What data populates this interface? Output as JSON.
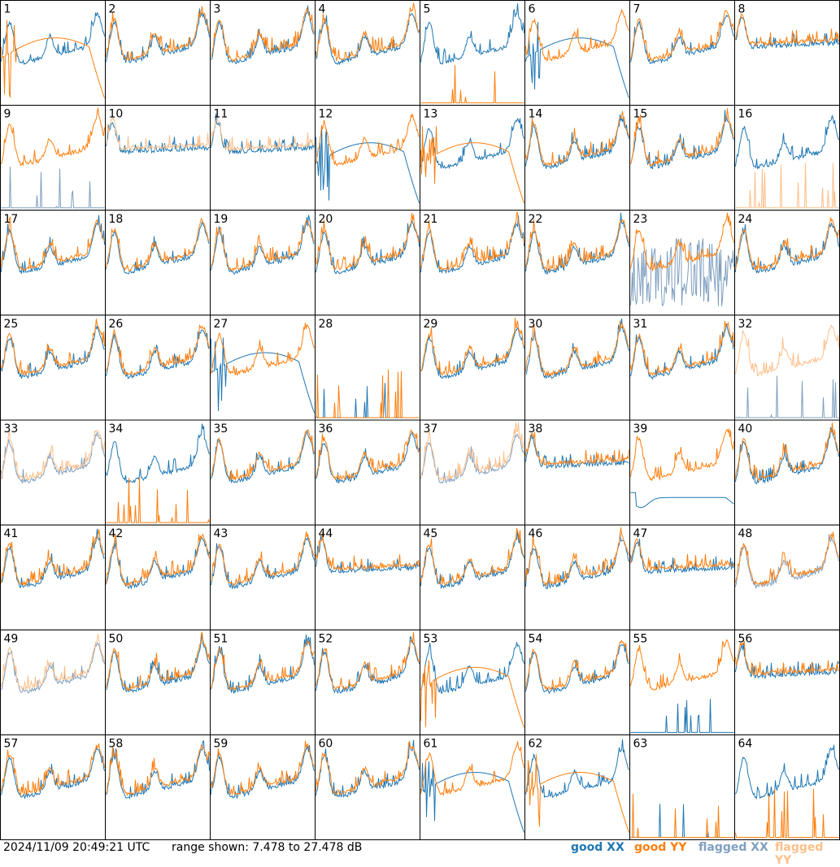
{
  "chart_data": {
    "type": "line",
    "panels": [
      {
        "id": "1",
        "xx": "good",
        "yy": "good",
        "shape": "yy-rolloff"
      },
      {
        "id": "2",
        "xx": "good",
        "yy": "good",
        "shape": "normal"
      },
      {
        "id": "3",
        "xx": "good",
        "yy": "good",
        "shape": "normal"
      },
      {
        "id": "4",
        "xx": "good",
        "yy": "good",
        "shape": "normal"
      },
      {
        "id": "5",
        "xx": "good",
        "yy": "good",
        "shape": "yy-dead"
      },
      {
        "id": "6",
        "xx": "good",
        "yy": "good",
        "shape": "xx-rolloff"
      },
      {
        "id": "7",
        "xx": "good",
        "yy": "good",
        "shape": "normal"
      },
      {
        "id": "8",
        "xx": "good",
        "yy": "good",
        "shape": "flatish"
      },
      {
        "id": "9",
        "xx": "flagged",
        "yy": "good",
        "shape": "xx-spiky-dead"
      },
      {
        "id": "10",
        "xx": "good",
        "yy": "flagged",
        "shape": "flatish"
      },
      {
        "id": "11",
        "xx": "good",
        "yy": "flagged",
        "shape": "flatish"
      },
      {
        "id": "12",
        "xx": "good",
        "yy": "good",
        "shape": "xx-rolloff"
      },
      {
        "id": "13",
        "xx": "good",
        "yy": "good",
        "shape": "yy-rolloff"
      },
      {
        "id": "14",
        "xx": "good",
        "yy": "good",
        "shape": "normal"
      },
      {
        "id": "15",
        "xx": "good",
        "yy": "good",
        "shape": "normal"
      },
      {
        "id": "16",
        "xx": "good",
        "yy": "flagged",
        "shape": "yy-dead"
      },
      {
        "id": "17",
        "xx": "good",
        "yy": "good",
        "shape": "normal"
      },
      {
        "id": "18",
        "xx": "good",
        "yy": "good",
        "shape": "normal"
      },
      {
        "id": "19",
        "xx": "good",
        "yy": "good",
        "shape": "normal"
      },
      {
        "id": "20",
        "xx": "good",
        "yy": "good",
        "shape": "normal"
      },
      {
        "id": "21",
        "xx": "good",
        "yy": "good",
        "shape": "normal"
      },
      {
        "id": "22",
        "xx": "good",
        "yy": "good",
        "shape": "normal"
      },
      {
        "id": "23",
        "xx": "flagged",
        "yy": "good",
        "shape": "xx-noisy"
      },
      {
        "id": "24",
        "xx": "good",
        "yy": "good",
        "shape": "normal"
      },
      {
        "id": "25",
        "xx": "good",
        "yy": "good",
        "shape": "normal"
      },
      {
        "id": "26",
        "xx": "good",
        "yy": "good",
        "shape": "normal"
      },
      {
        "id": "27",
        "xx": "good",
        "yy": "good",
        "shape": "xx-rolloff"
      },
      {
        "id": "28",
        "xx": "good",
        "yy": "good",
        "shape": "both-dead"
      },
      {
        "id": "29",
        "xx": "good",
        "yy": "good",
        "shape": "normal"
      },
      {
        "id": "30",
        "xx": "good",
        "yy": "good",
        "shape": "normal"
      },
      {
        "id": "31",
        "xx": "good",
        "yy": "good",
        "shape": "normal"
      },
      {
        "id": "32",
        "xx": "flagged",
        "yy": "flagged",
        "shape": "yy-only"
      },
      {
        "id": "33",
        "xx": "flagged",
        "yy": "flagged",
        "shape": "normal"
      },
      {
        "id": "34",
        "xx": "good",
        "yy": "good",
        "shape": "yy-dead"
      },
      {
        "id": "35",
        "xx": "good",
        "yy": "good",
        "shape": "normal"
      },
      {
        "id": "36",
        "xx": "good",
        "yy": "good",
        "shape": "normal"
      },
      {
        "id": "37",
        "xx": "flagged",
        "yy": "flagged",
        "shape": "normal"
      },
      {
        "id": "38",
        "xx": "good",
        "yy": "good",
        "shape": "flatish"
      },
      {
        "id": "39",
        "xx": "good",
        "yy": "good",
        "shape": "xx-low"
      },
      {
        "id": "40",
        "xx": "good",
        "yy": "good",
        "shape": "normal"
      },
      {
        "id": "41",
        "xx": "good",
        "yy": "good",
        "shape": "normal"
      },
      {
        "id": "42",
        "xx": "good",
        "yy": "good",
        "shape": "normal"
      },
      {
        "id": "43",
        "xx": "good",
        "yy": "good",
        "shape": "normal"
      },
      {
        "id": "44",
        "xx": "good",
        "yy": "good",
        "shape": "flatish"
      },
      {
        "id": "45",
        "xx": "good",
        "yy": "good",
        "shape": "normal"
      },
      {
        "id": "46",
        "xx": "good",
        "yy": "good",
        "shape": "normal"
      },
      {
        "id": "47",
        "xx": "good",
        "yy": "good",
        "shape": "flatish"
      },
      {
        "id": "48",
        "xx": "flagged",
        "yy": "good",
        "shape": "normal"
      },
      {
        "id": "49",
        "xx": "flagged",
        "yy": "flagged",
        "shape": "normal"
      },
      {
        "id": "50",
        "xx": "good",
        "yy": "good",
        "shape": "normal"
      },
      {
        "id": "51",
        "xx": "good",
        "yy": "good",
        "shape": "normal"
      },
      {
        "id": "52",
        "xx": "good",
        "yy": "good",
        "shape": "normal"
      },
      {
        "id": "53",
        "xx": "good",
        "yy": "good",
        "shape": "yy-rolloff"
      },
      {
        "id": "54",
        "xx": "good",
        "yy": "good",
        "shape": "normal"
      },
      {
        "id": "55",
        "xx": "good",
        "yy": "good",
        "shape": "xx-spiky-dead"
      },
      {
        "id": "56",
        "xx": "good",
        "yy": "good",
        "shape": "flatish"
      },
      {
        "id": "57",
        "xx": "good",
        "yy": "good",
        "shape": "normal"
      },
      {
        "id": "58",
        "xx": "good",
        "yy": "good",
        "shape": "normal"
      },
      {
        "id": "59",
        "xx": "good",
        "yy": "good",
        "shape": "normal"
      },
      {
        "id": "60",
        "xx": "good",
        "yy": "good",
        "shape": "normal"
      },
      {
        "id": "61",
        "xx": "good",
        "yy": "good",
        "shape": "xx-rolloff"
      },
      {
        "id": "62",
        "xx": "good",
        "yy": "good",
        "shape": "yy-rolloff"
      },
      {
        "id": "63",
        "xx": "good",
        "yy": "good",
        "shape": "both-dead"
      },
      {
        "id": "64",
        "xx": "good",
        "yy": "good",
        "shape": "xx-only"
      }
    ],
    "ylim_db": [
      7.478,
      27.478
    ],
    "grid": "8x8",
    "colors": {
      "good_xx": "#1f77b4",
      "good_yy": "#ff7f0e",
      "flagged_xx": "#7f9fbf",
      "flagged_yy": "#ffbf8a"
    }
  },
  "footer": {
    "timestamp": "2024/11/09 20:49:21 UTC",
    "range": "range shown: 7.478 to 27.478 dB",
    "legend": {
      "good_xx": "good XX",
      "good_yy": "good YY",
      "flagged_xx": "flagged XX",
      "flagged_yy": "flagged YY"
    }
  }
}
